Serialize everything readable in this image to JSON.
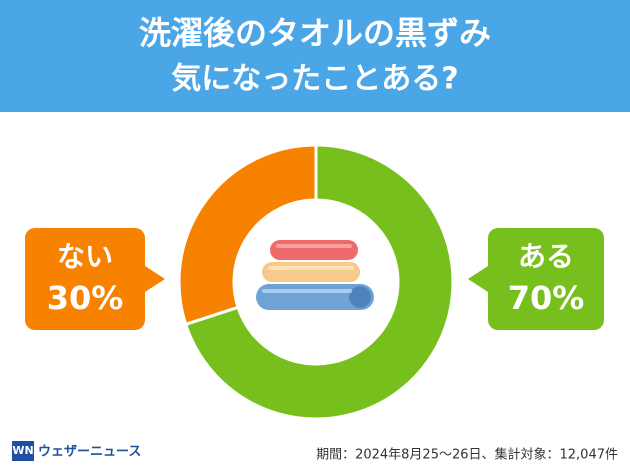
{
  "header": {
    "title_line1": "洗濯後のタオルの黒ずみ",
    "title_line2": "気になったことある?"
  },
  "chart_data": {
    "type": "donut",
    "categories": [
      "ある",
      "ない"
    ],
    "values": [
      70,
      30
    ],
    "value_labels": [
      "70%",
      "30%"
    ],
    "colors": [
      "#77bf1c",
      "#f68200"
    ]
  },
  "footer": {
    "note": "期間：2024年8月25～26日、集計対象：12,047件",
    "brand": "ウェザーニュース"
  }
}
